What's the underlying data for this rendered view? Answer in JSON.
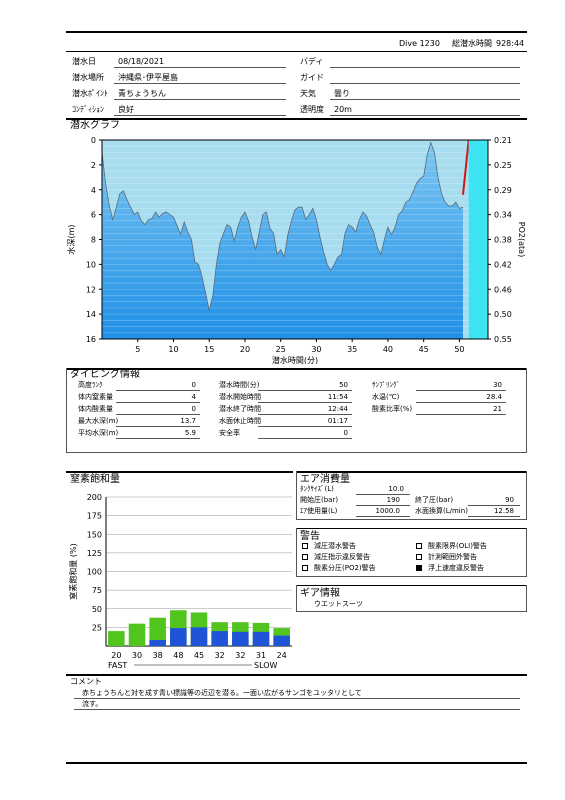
{
  "header": {
    "dive_label": "Dive 1230",
    "total_label": "総潜水時間",
    "total_value": "928:44"
  },
  "log": {
    "left": [
      {
        "label": "潜水日",
        "value": "08/18/2021"
      },
      {
        "label": "潜水場所",
        "value": "沖縄県･伊平屋島"
      },
      {
        "label": "潜水ﾎﾟｲﾝﾄ",
        "value": "青ちょうちん"
      },
      {
        "label": "ｺﾝﾃﾞｨｼｮﾝ",
        "value": "良好"
      }
    ],
    "right": [
      {
        "label": "バディ",
        "value": ""
      },
      {
        "label": "ガイド",
        "value": ""
      },
      {
        "label": "天気",
        "value": "曇り"
      },
      {
        "label": "透明度",
        "value": "20m"
      }
    ]
  },
  "graph": {
    "title": "潜水グラフ",
    "ylabel_left": "水深(m)",
    "ylabel_right": "PO2(ata)",
    "xlabel": "潜水時間(分)",
    "depth_ticks": [
      "0",
      "2",
      "4",
      "6",
      "8",
      "10",
      "12",
      "14",
      "16"
    ],
    "po2_ticks": [
      "0.21",
      "0.25",
      "0.29",
      "0.34",
      "0.38",
      "0.42",
      "0.46",
      "0.50",
      "0.55"
    ],
    "x_ticks": [
      "5",
      "10",
      "15",
      "20",
      "25",
      "30",
      "35",
      "40",
      "45",
      "50"
    ]
  },
  "chart_data": [
    {
      "type": "area",
      "title": "潜水グラフ",
      "xlabel": "潜水時間(分)",
      "ylabel": "水深(m)",
      "y2label": "PO2(ata)",
      "xlim": [
        0,
        54
      ],
      "ylim": [
        0,
        16
      ],
      "y2lim": [
        0.21,
        0.55
      ],
      "grid": true,
      "x": [
        0,
        0.5,
        1,
        1.5,
        2,
        2.5,
        3,
        3.5,
        4,
        4.5,
        5,
        5.5,
        6,
        6.5,
        7,
        7.5,
        8,
        8.5,
        9,
        9.5,
        10,
        10.5,
        11,
        11.5,
        12,
        12.5,
        13,
        13.5,
        14,
        14.5,
        15,
        15.5,
        16,
        16.5,
        17,
        17.5,
        18,
        18.5,
        19,
        19.5,
        20,
        20.5,
        21,
        21.5,
        22,
        22.5,
        23,
        23.5,
        24,
        24.5,
        25,
        25.5,
        26,
        26.5,
        27,
        27.5,
        28,
        28.5,
        29,
        29.5,
        30,
        30.5,
        31,
        31.5,
        32,
        32.5,
        33,
        33.5,
        34,
        34.5,
        35,
        35.5,
        36,
        36.5,
        37,
        37.5,
        38,
        38.5,
        39,
        39.5,
        40,
        40.5,
        41,
        41.5,
        42,
        42.5,
        43,
        43.5,
        44,
        44.5,
        45,
        45.5,
        46,
        46.5,
        47,
        47.5,
        48,
        48.5,
        49,
        49.5,
        50,
        50.5
      ],
      "values": [
        1,
        3.5,
        5.2,
        6.4,
        5.4,
        4.3,
        4.1,
        4.8,
        5.4,
        6.0,
        5.8,
        6.5,
        6.8,
        6.4,
        6.3,
        5.8,
        6.2,
        5.9,
        5.8,
        6.0,
        6.2,
        6.9,
        7.6,
        6.6,
        7.4,
        8.0,
        9.8,
        10.0,
        11.0,
        12.3,
        13.7,
        12.5,
        10.0,
        8.3,
        7.5,
        6.8,
        7.0,
        8.1,
        7.0,
        6.2,
        5.8,
        6.5,
        7.8,
        8.8,
        7.4,
        6.0,
        5.8,
        7.1,
        7.5,
        9.2,
        8.8,
        9.4,
        7.6,
        6.5,
        5.6,
        5.4,
        5.4,
        6.4,
        6.0,
        5.5,
        6.4,
        7.8,
        9.0,
        10.0,
        10.5,
        10.0,
        9.4,
        9.2,
        7.5,
        6.8,
        7.0,
        7.4,
        6.4,
        5.8,
        6.1,
        6.8,
        7.4,
        8.6,
        9.2,
        8.0,
        7.0,
        7.6,
        7.0,
        6.0,
        5.7,
        5.0,
        4.8,
        4.2,
        3.5,
        3.1,
        2.9,
        1.2,
        0.2,
        1.0,
        3.0,
        4.3,
        5.0,
        5.3,
        5.3,
        5.0,
        5.5,
        5.4
      ],
      "ascent_rate_line": {
        "x": [
          50.5,
          51.3
        ],
        "values": [
          4.4,
          0
        ]
      }
    },
    {
      "type": "bar",
      "title": "窒素飽和量",
      "ylabel": "窒素飽和量 (%)",
      "categories": [
        "20",
        "30",
        "38",
        "48",
        "45",
        "32",
        "32",
        "31",
        "24"
      ],
      "series": [
        {
          "values": [
            20,
            30,
            38,
            48,
            45,
            32,
            32,
            31,
            24
          ],
          "color": "#52c41e"
        },
        {
          "values": [
            0,
            0,
            8,
            24,
            25,
            20,
            19,
            19,
            14
          ],
          "color": "#1f54d9"
        }
      ],
      "ylim": [
        0,
        200
      ],
      "y_ticks": [
        "200",
        "175",
        "150",
        "125",
        "100",
        "75",
        "50",
        "25"
      ],
      "left_label": "FAST",
      "right_label": "SLOW"
    }
  ],
  "diving_info": {
    "title": "ダイビング情報",
    "col1": [
      {
        "label": "高度ﾗﾝｸ",
        "value": "0"
      },
      {
        "label": "体内窒素量",
        "value": "4"
      },
      {
        "label": "体内酸素量",
        "value": "0"
      },
      {
        "label": "最大水深(m)",
        "value": "13.7"
      },
      {
        "label": "平均水深(m)",
        "value": "5.9"
      }
    ],
    "col2": [
      {
        "label": "潜水時間(分)",
        "value": "50"
      },
      {
        "label": "潜水開始時間",
        "value": "11:54"
      },
      {
        "label": "潜水終了時間",
        "value": "12:44"
      },
      {
        "label": "水面休止時間",
        "value": "01:17"
      },
      {
        "label": "安全率",
        "value": "0"
      }
    ],
    "col3": [
      {
        "label": "ｻﾝﾌﾟﾘﾝｸﾞ",
        "value": "30"
      },
      {
        "label": "水温(℃)",
        "value": "28.4"
      },
      {
        "label": "酸素比率(%)",
        "value": "21"
      }
    ]
  },
  "nitrogen": {
    "title": "窒素飽和量",
    "ylabel": "窒素飽和量 (%)",
    "fast": "FAST",
    "slow": "SLOW"
  },
  "air": {
    "title": "エア消費量",
    "tank_label": "ﾀﾝｸｻｲｽﾞ(L)",
    "tank_value": "10.0",
    "start_label": "開始圧(bar)",
    "start_value": "190",
    "end_label": "終了圧(bar)",
    "end_value": "90",
    "used_label": "ｴｱ使用量(L)",
    "used_value": "1000.0",
    "surface_label": "水面換算(L/min)",
    "surface_value": "12.58"
  },
  "warnings": {
    "title": "警告",
    "items": [
      {
        "label": "減圧潜水警告",
        "checked": false
      },
      {
        "label": "酸素限界(OLI)警告",
        "checked": false
      },
      {
        "label": "減圧指示違反警告",
        "checked": false
      },
      {
        "label": "計測範囲外警告",
        "checked": false
      },
      {
        "label": "酸素分圧(PO2)警告",
        "checked": false
      },
      {
        "label": "浮上速度違反警告",
        "checked": true
      }
    ]
  },
  "gear": {
    "title": "ギア情報",
    "items": [
      "ウエットスーツ"
    ]
  },
  "comment": {
    "title": "コメント",
    "lines": [
      "赤ちょうちんと対を成す青い標識等の近辺を潜る。一面い広がるサンゴをユッタリとして",
      "流す。"
    ]
  },
  "colors": {
    "chart_fill": "#a8ddf0",
    "chart_water": "#2a98e8",
    "po2_line": "#cc1a1a",
    "bar_green": "#52c41e",
    "bar_blue": "#1f54d9"
  }
}
